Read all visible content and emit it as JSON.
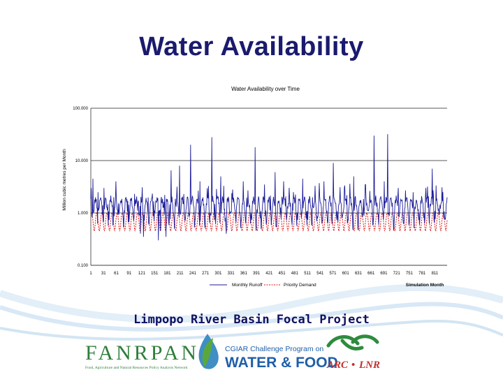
{
  "slide": {
    "title": "Water Availability",
    "caption": "Limpopo River Basin Focal Project"
  },
  "colors": {
    "title": "#1a1a6e",
    "monthly_runoff": "#1c1c9a",
    "priority_demand": "#dd1111",
    "wave": "#9fc8e8",
    "fanrpan": "#2e7d3a",
    "cgiar": "#1f5fa8",
    "arc": "#c22f2f"
  },
  "logos": {
    "fanrpan": "FANRPAN",
    "fanrpan_sub": "Food, Agriculture and Natural Resources Policy Analysis Network",
    "cgiar_line1": "CGIAR Challenge Program on",
    "cgiar_line2": "WATER & FOOD",
    "arc": "ARC",
    "lnr": "LNR"
  },
  "chart_data": {
    "type": "line",
    "title": "Water Availability over Time",
    "xlabel": "Simulation Month",
    "ylabel": "Million cubic metres per Month",
    "yscale": "log",
    "ylim": [
      0.1,
      100
    ],
    "xlim": [
      1,
      840
    ],
    "grid": "major y gridlines",
    "legend_position": "bottom",
    "y_ticks": [
      "0.100",
      "1.000",
      "10.000",
      "100.000"
    ],
    "x_ticks": [
      "1",
      "31",
      "61",
      "91",
      "121",
      "151",
      "181",
      "211",
      "241",
      "271",
      "301",
      "331",
      "361",
      "391",
      "421",
      "451",
      "481",
      "511",
      "541",
      "571",
      "601",
      "631",
      "661",
      "691",
      "721",
      "751",
      "781",
      "811"
    ],
    "series": [
      {
        "name": "Monthly Runoff",
        "style": "solid",
        "peaks": [
          [
            6,
            4.5
          ],
          [
            18,
            2.5
          ],
          [
            32,
            3.0
          ],
          [
            55,
            2.0
          ],
          [
            60,
            4.0
          ],
          [
            82,
            1.8
          ],
          [
            108,
            1.6
          ],
          [
            130,
            1.5
          ],
          [
            158,
            1.7
          ],
          [
            175,
            2.2
          ],
          [
            190,
            6.5
          ],
          [
            210,
            8.0
          ],
          [
            236,
            20.0
          ],
          [
            258,
            4.0
          ],
          [
            286,
            28.0
          ],
          [
            307,
            5.0
          ],
          [
            335,
            2.8
          ],
          [
            360,
            4.0
          ],
          [
            388,
            18.0
          ],
          [
            410,
            3.5
          ],
          [
            435,
            6.0
          ],
          [
            455,
            4.0
          ],
          [
            478,
            2.5
          ],
          [
            500,
            4.5
          ],
          [
            523,
            2.0
          ],
          [
            550,
            4.0
          ],
          [
            572,
            9.0
          ],
          [
            598,
            3.0
          ],
          [
            620,
            5.0
          ],
          [
            648,
            3.5
          ],
          [
            668,
            30.0
          ],
          [
            692,
            4.0
          ],
          [
            700,
            32.0
          ],
          [
            725,
            3.0
          ],
          [
            760,
            2.5
          ],
          [
            790,
            3.0
          ],
          [
            805,
            7.0
          ],
          [
            830,
            2.5
          ]
        ],
        "low_period": [
          [
            118,
            0.4
          ],
          [
            125,
            0.35
          ],
          [
            160,
            0.3
          ],
          [
            165,
            0.45
          ],
          [
            178,
            0.35
          ],
          [
            320,
            0.4
          ]
        ]
      },
      {
        "name": "Priority Demand",
        "style": "dashed",
        "seasonal_range": [
          0.45,
          1.0
        ]
      }
    ]
  }
}
